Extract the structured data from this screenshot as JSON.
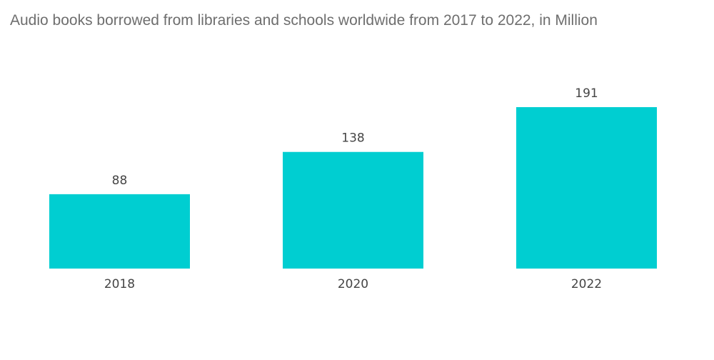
{
  "chart_data": {
    "type": "bar",
    "title": "Audio books borrowed from libraries and schools worldwide from 2017 to 2022, in Million",
    "categories": [
      "2018",
      "2020",
      "2022"
    ],
    "values": [
      88,
      138,
      191
    ],
    "value_labels": [
      "88",
      "138",
      "191"
    ],
    "xlabel": "",
    "ylabel": "",
    "ylim": [
      0,
      191
    ],
    "grid": false,
    "legend": "none",
    "bar_color": "#00ced1"
  }
}
